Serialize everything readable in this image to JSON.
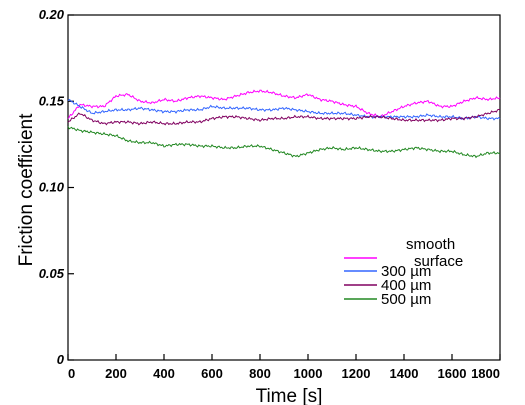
{
  "chart_data": {
    "type": "line",
    "title": "",
    "xlabel": "Time [s]",
    "ylabel": "Friction coefficient",
    "xlim": [
      0,
      1800
    ],
    "ylim": [
      0,
      0.2
    ],
    "xticks": [
      "0",
      "200",
      "400",
      "600",
      "800",
      "1000",
      "1200",
      "1400",
      "1600",
      "1800"
    ],
    "yticks": [
      "0",
      "0.05",
      "0.10",
      "0.15",
      "0.20"
    ],
    "grid": false,
    "legend_position": "bottom-right",
    "series": [
      {
        "name": "smooth surface",
        "color": "#ff00ff",
        "x": [
          0,
          50,
          100,
          150,
          200,
          250,
          300,
          350,
          400,
          450,
          500,
          550,
          600,
          650,
          700,
          750,
          800,
          850,
          900,
          950,
          1000,
          1050,
          1100,
          1150,
          1200,
          1250,
          1300,
          1350,
          1400,
          1450,
          1500,
          1550,
          1600,
          1650,
          1700,
          1750,
          1800
        ],
        "y": [
          0.14,
          0.148,
          0.147,
          0.147,
          0.153,
          0.154,
          0.15,
          0.149,
          0.151,
          0.15,
          0.152,
          0.153,
          0.152,
          0.151,
          0.153,
          0.155,
          0.156,
          0.155,
          0.153,
          0.152,
          0.154,
          0.151,
          0.15,
          0.148,
          0.147,
          0.143,
          0.141,
          0.144,
          0.147,
          0.149,
          0.15,
          0.147,
          0.147,
          0.15,
          0.152,
          0.151,
          0.152
        ]
      },
      {
        "name": "300 µm",
        "color": "#3366ff",
        "x": [
          0,
          50,
          100,
          150,
          200,
          250,
          300,
          350,
          400,
          450,
          500,
          550,
          600,
          650,
          700,
          750,
          800,
          850,
          900,
          950,
          1000,
          1050,
          1100,
          1150,
          1200,
          1250,
          1300,
          1350,
          1400,
          1450,
          1500,
          1550,
          1600,
          1650,
          1700,
          1750,
          1800
        ],
        "y": [
          0.151,
          0.147,
          0.143,
          0.144,
          0.145,
          0.145,
          0.146,
          0.145,
          0.144,
          0.144,
          0.145,
          0.145,
          0.147,
          0.146,
          0.146,
          0.146,
          0.145,
          0.145,
          0.146,
          0.145,
          0.144,
          0.143,
          0.143,
          0.143,
          0.142,
          0.141,
          0.141,
          0.141,
          0.141,
          0.141,
          0.142,
          0.141,
          0.141,
          0.14,
          0.141,
          0.14,
          0.14
        ]
      },
      {
        "name": "400 µm",
        "color": "#800060",
        "x": [
          0,
          50,
          100,
          150,
          200,
          250,
          300,
          350,
          400,
          450,
          500,
          550,
          600,
          650,
          700,
          750,
          800,
          850,
          900,
          950,
          1000,
          1050,
          1100,
          1150,
          1200,
          1250,
          1300,
          1350,
          1400,
          1450,
          1500,
          1550,
          1600,
          1650,
          1700,
          1750,
          1800
        ],
        "y": [
          0.138,
          0.143,
          0.139,
          0.137,
          0.138,
          0.138,
          0.137,
          0.138,
          0.137,
          0.137,
          0.138,
          0.138,
          0.14,
          0.141,
          0.141,
          0.14,
          0.139,
          0.14,
          0.14,
          0.141,
          0.141,
          0.14,
          0.14,
          0.14,
          0.14,
          0.141,
          0.141,
          0.14,
          0.139,
          0.139,
          0.139,
          0.139,
          0.14,
          0.14,
          0.141,
          0.143,
          0.145
        ]
      },
      {
        "name": "500 µm",
        "color": "#228822",
        "x": [
          0,
          50,
          100,
          150,
          200,
          250,
          300,
          350,
          400,
          450,
          500,
          550,
          600,
          650,
          700,
          750,
          800,
          850,
          900,
          950,
          1000,
          1050,
          1100,
          1150,
          1200,
          1250,
          1300,
          1350,
          1400,
          1450,
          1500,
          1550,
          1600,
          1650,
          1700,
          1750,
          1800
        ],
        "y": [
          0.135,
          0.133,
          0.132,
          0.131,
          0.13,
          0.127,
          0.126,
          0.126,
          0.124,
          0.125,
          0.125,
          0.124,
          0.124,
          0.123,
          0.123,
          0.124,
          0.124,
          0.122,
          0.12,
          0.118,
          0.12,
          0.122,
          0.123,
          0.122,
          0.123,
          0.122,
          0.121,
          0.121,
          0.122,
          0.123,
          0.122,
          0.121,
          0.121,
          0.119,
          0.118,
          0.12,
          0.12
        ]
      }
    ]
  }
}
